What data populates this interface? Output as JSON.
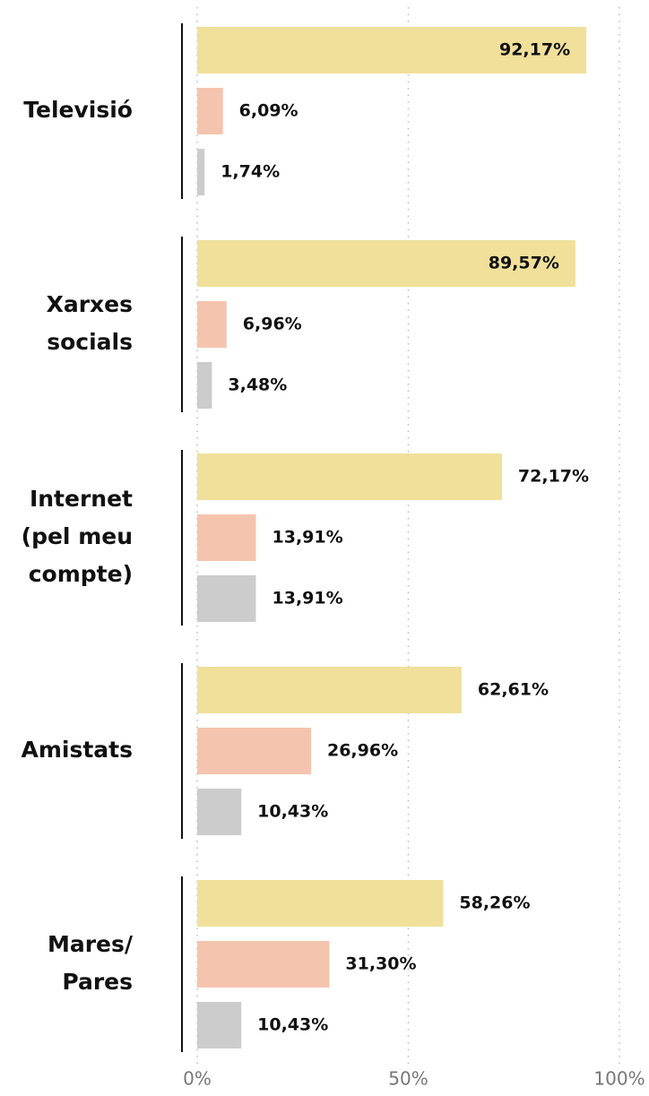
{
  "chart_data": {
    "type": "bar",
    "orientation": "horizontal",
    "categories": [
      [
        "Televisió"
      ],
      [
        "Xarxes",
        "socials"
      ],
      [
        "Internet",
        "(pel meu",
        "compte)"
      ],
      [
        "Amistats"
      ],
      [
        "Mares/",
        "Pares"
      ]
    ],
    "series": [
      {
        "color": "#f0e09a",
        "values": [
          92.17,
          89.57,
          72.17,
          62.61,
          58.26
        ],
        "value_labels": [
          "92,17%",
          "89,57%",
          "72,17%",
          "62,61%",
          "58,26%"
        ]
      },
      {
        "color": "#f5c4ae",
        "values": [
          6.09,
          6.96,
          13.91,
          26.96,
          31.3
        ],
        "value_labels": [
          "6,09%",
          "6,96%",
          "13,91%",
          "26,96%",
          "31,30%"
        ]
      },
      {
        "color": "#cccccc",
        "values": [
          1.74,
          3.48,
          13.91,
          10.43,
          10.43
        ],
        "value_labels": [
          "1,74%",
          "3,48%",
          "13,91%",
          "10,43%",
          "10,43%"
        ]
      }
    ],
    "xlim": [
      0,
      100
    ],
    "xticks": [
      {
        "value": 0,
        "label": "0%"
      },
      {
        "value": 50,
        "label": "50%"
      },
      {
        "value": 100,
        "label": "100%"
      }
    ],
    "grid": true
  }
}
